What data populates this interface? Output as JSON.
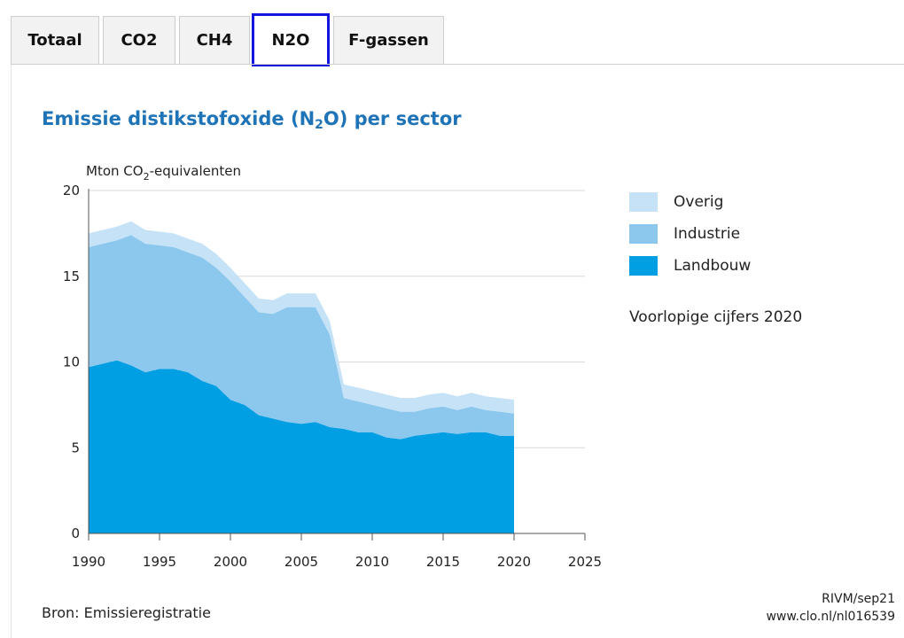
{
  "tabs": [
    {
      "label": "Totaal",
      "active": false
    },
    {
      "label": "CO2",
      "active": false
    },
    {
      "label": "CH4",
      "active": false
    },
    {
      "label": "N2O",
      "active": true
    },
    {
      "label": "F-gassen",
      "active": false
    }
  ],
  "title": {
    "text": "Emissie distikstofoxide (N",
    "sub": "2",
    "rest": "O) per sector"
  },
  "unit": {
    "text": "Mton CO",
    "sub": "2",
    "rest": "-equivalenten"
  },
  "note": "Voorlopige cijfers 2020",
  "source": "Bron: Emissieregistratie",
  "credit": {
    "line1": "RIVM/sep21",
    "line2": "www.clo.nl/nl016539"
  },
  "colors": {
    "overig": "#c5e2f7",
    "industrie": "#8cc8ee",
    "landbouw": "#009fe3",
    "title": "#1f73b7",
    "active_tab_border": "#1515e0"
  },
  "chart_data": {
    "type": "area",
    "stacked": true,
    "title": "Emissie distikstofoxide (N2O) per sector",
    "ylabel": "Mton CO2-equivalenten",
    "xlabel": "",
    "xlim": [
      1990,
      2025
    ],
    "ylim": [
      0,
      20
    ],
    "x_ticks": [
      1990,
      1995,
      2000,
      2005,
      2010,
      2015,
      2020,
      2025
    ],
    "y_ticks": [
      0,
      5,
      10,
      15,
      20
    ],
    "grid": "horizontal",
    "legend_position": "right",
    "x": [
      1990,
      1991,
      1992,
      1993,
      1994,
      1995,
      1996,
      1997,
      1998,
      1999,
      2000,
      2001,
      2002,
      2003,
      2004,
      2005,
      2006,
      2007,
      2008,
      2009,
      2010,
      2011,
      2012,
      2013,
      2014,
      2015,
      2016,
      2017,
      2018,
      2019,
      2020
    ],
    "series": [
      {
        "name": "Landbouw",
        "values": [
          9.7,
          9.9,
          10.1,
          9.8,
          9.4,
          9.6,
          9.6,
          9.4,
          8.9,
          8.6,
          7.8,
          7.5,
          6.9,
          6.7,
          6.5,
          6.4,
          6.5,
          6.2,
          6.1,
          5.9,
          5.9,
          5.6,
          5.5,
          5.7,
          5.8,
          5.9,
          5.8,
          5.9,
          5.9,
          5.7,
          5.7
        ]
      },
      {
        "name": "Industrie",
        "values": [
          7.0,
          7.0,
          7.0,
          7.6,
          7.5,
          7.2,
          7.1,
          7.0,
          7.2,
          6.9,
          6.9,
          6.3,
          6.0,
          6.1,
          6.7,
          6.8,
          6.7,
          5.4,
          1.8,
          1.8,
          1.6,
          1.7,
          1.6,
          1.4,
          1.5,
          1.5,
          1.4,
          1.5,
          1.3,
          1.4,
          1.3
        ]
      },
      {
        "name": "Overig",
        "values": [
          0.8,
          0.8,
          0.8,
          0.8,
          0.8,
          0.8,
          0.8,
          0.8,
          0.8,
          0.8,
          0.8,
          0.8,
          0.8,
          0.8,
          0.8,
          0.8,
          0.8,
          0.8,
          0.8,
          0.8,
          0.8,
          0.8,
          0.8,
          0.8,
          0.8,
          0.8,
          0.8,
          0.8,
          0.8,
          0.8,
          0.8
        ]
      }
    ],
    "legend": [
      "Overig",
      "Industrie",
      "Landbouw"
    ]
  }
}
